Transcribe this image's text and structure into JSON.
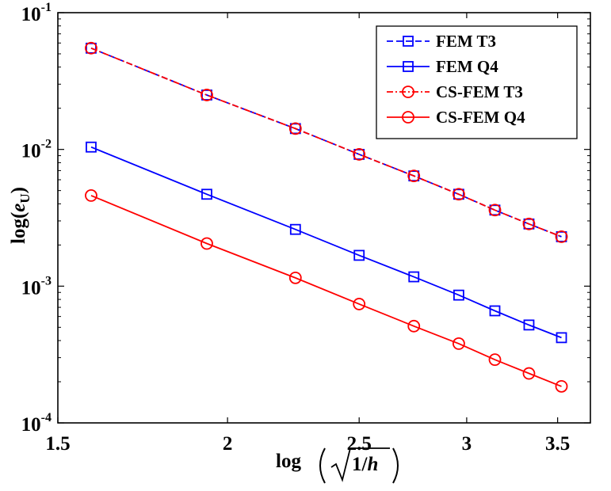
{
  "chart_data": {
    "type": "line",
    "xscale": "log",
    "yscale": "log",
    "xlim": [
      1.5,
      3.7
    ],
    "ylim": [
      0.0001,
      0.1
    ],
    "xticks": [
      {
        "value": 1.5,
        "label": "1.5"
      },
      {
        "value": 2,
        "label": "2"
      },
      {
        "value": 2.5,
        "label": "2.5"
      },
      {
        "value": 3,
        "label": "3"
      },
      {
        "value": 3.5,
        "label": "3.5"
      }
    ],
    "yticks": [
      {
        "value": 0.0001,
        "base": "10",
        "exp": "-4"
      },
      {
        "value": 0.001,
        "base": "10",
        "exp": "-3"
      },
      {
        "value": 0.01,
        "base": "10",
        "exp": "-2"
      },
      {
        "value": 0.1,
        "base": "10",
        "exp": "-1"
      }
    ],
    "xlabel": {
      "prefix": "log",
      "var": "h",
      "rad_num": "1/"
    },
    "ylabel": {
      "prefix": "log(",
      "var": "e",
      "sub": "U",
      "suffix": ")"
    },
    "legend_position": "top-right",
    "x": [
      1.587,
      1.931,
      2.244,
      2.5,
      2.743,
      2.96,
      3.147,
      3.334,
      3.523
    ],
    "series": [
      {
        "name": "FEM T3",
        "color": "#0000ff",
        "dash": "8 4",
        "marker": "square",
        "values": [
          0.055,
          0.025,
          0.0142,
          0.0092,
          0.0064,
          0.0047,
          0.0036,
          0.00285,
          0.0023
        ]
      },
      {
        "name": "FEM Q4",
        "color": "#0000ff",
        "dash": "",
        "marker": "square",
        "values": [
          0.0104,
          0.0047,
          0.0026,
          0.00168,
          0.00117,
          0.00086,
          0.00066,
          0.00052,
          0.00042
        ]
      },
      {
        "name": "CS-FEM T3",
        "color": "#ff0000",
        "dash": "8 3 2 3",
        "marker": "circle",
        "values": [
          0.055,
          0.025,
          0.0142,
          0.0092,
          0.0064,
          0.0047,
          0.0036,
          0.00285,
          0.0023
        ]
      },
      {
        "name": "CS-FEM Q4",
        "color": "#ff0000",
        "dash": "",
        "marker": "circle",
        "values": [
          0.0046,
          0.00205,
          0.00115,
          0.00074,
          0.00051,
          0.00038,
          0.00029,
          0.00023,
          0.000185
        ]
      }
    ]
  }
}
